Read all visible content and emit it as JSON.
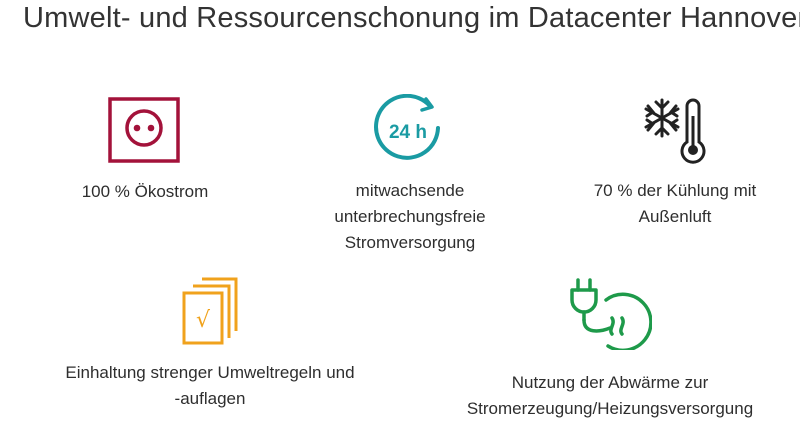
{
  "title": "Umwelt- und Ressourcenschonung im Datacenter Hannover",
  "colors": {
    "socket": "#a3123a",
    "clock": "#1a9ba3",
    "snow": "#222222",
    "docs": "#f0a21c",
    "plug": "#1e9a4a"
  },
  "items": [
    {
      "icon": "power-socket-icon",
      "lines": [
        "100 % Ökostrom"
      ]
    },
    {
      "icon": "24h-clock-icon",
      "icon_text": "24 h",
      "lines": [
        "mitwachsende",
        "unterbrechungsfreie",
        "Stromversorgung"
      ]
    },
    {
      "icon": "snowflake-thermometer-icon",
      "lines": [
        "70 % der Kühlung mit",
        "Außenluft"
      ]
    },
    {
      "icon": "checked-documents-icon",
      "icon_text": "√",
      "lines": [
        "Einhaltung strenger Umweltregeln und",
        "-auflagen"
      ]
    },
    {
      "icon": "plug-heat-icon",
      "lines": [
        "Nutzung der Abwärme zur",
        "Stromerzeugung/Heizungsversorgung"
      ]
    }
  ]
}
